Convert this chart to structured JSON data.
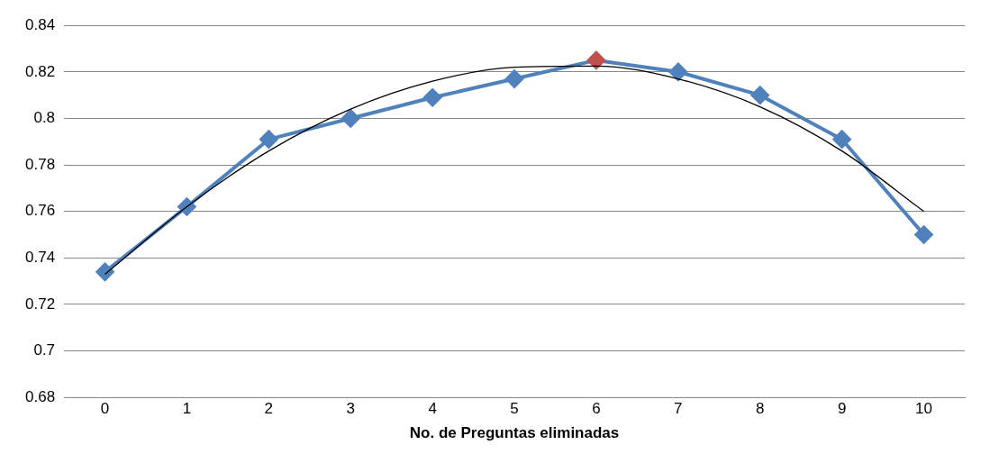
{
  "chart_data": {
    "type": "line",
    "xlabel": "No. de Preguntas eliminadas",
    "x": [
      0,
      1,
      2,
      3,
      4,
      5,
      6,
      7,
      8,
      9,
      10
    ],
    "series": [
      {
        "color": "#4f81bd",
        "colors": [
          "#4f81bd",
          "#4f81bd",
          "#4f81bd",
          "#4f81bd",
          "#4f81bd",
          "#4f81bd",
          "#c0504d",
          "#4f81bd",
          "#4f81bd",
          "#4f81bd",
          "#4f81bd"
        ],
        "values": [
          0.734,
          0.762,
          0.791,
          0.8,
          0.809,
          0.817,
          0.825,
          0.82,
          0.81,
          0.791,
          0.75
        ]
      },
      {
        "type": "line",
        "marker": "none",
        "color": "#000000",
        "x": [
          0,
          1,
          2,
          3,
          4,
          5,
          6,
          7,
          8,
          9,
          10
        ],
        "values": [
          0.733,
          0.762,
          0.786,
          0.804,
          0.816,
          0.822,
          0.8225,
          0.817,
          0.805,
          0.786,
          0.76
        ]
      }
    ],
    "xlim": [
      -0.5,
      10.5
    ],
    "xticks": [
      0,
      1,
      2,
      3,
      4,
      5,
      6,
      7,
      8,
      9,
      10
    ],
    "ylim": [
      0.68,
      0.84
    ],
    "yticks": [
      0.68,
      0.7,
      0.72,
      0.74,
      0.76,
      0.78,
      0.8,
      0.82,
      0.84
    ],
    "grid": "y",
    "legend": false,
    "marker": "diamond",
    "line_style": "solid"
  }
}
